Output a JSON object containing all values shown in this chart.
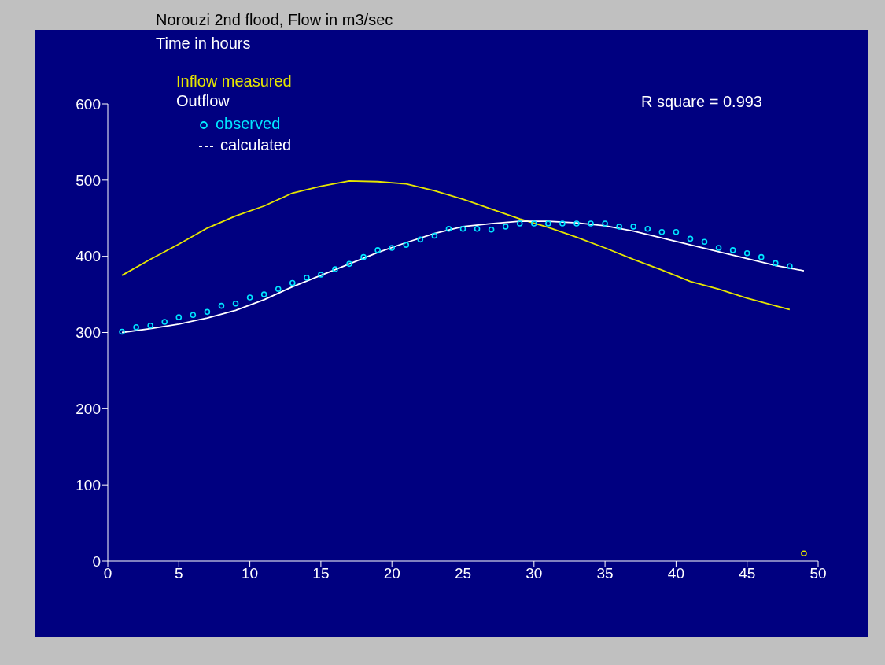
{
  "chart_data": {
    "type": "line",
    "title": "Norouzi 2nd flood, Flow in m3/sec",
    "xlabel": "Time in hours",
    "legend_title": "Outflow",
    "legend": "top left",
    "grid": false,
    "xlim": [
      0,
      50
    ],
    "xticks": [
      0,
      5,
      10,
      15,
      20,
      25,
      30,
      35,
      40,
      45,
      50
    ],
    "ylim": [
      0,
      600
    ],
    "yticks": [
      0,
      100,
      200,
      300,
      400,
      500,
      600
    ],
    "annotations": [
      "R square = 0.993"
    ],
    "series": [
      {
        "name": "Inflow measured",
        "color": "#e6e600",
        "x": [
          1,
          3,
          5,
          7,
          9,
          11,
          13,
          15,
          17,
          19,
          21,
          23,
          25,
          27,
          29,
          31,
          33,
          35,
          37,
          39,
          41,
          43,
          45,
          47,
          48
        ],
        "values": [
          375,
          396,
          416,
          437,
          453,
          466,
          483,
          492,
          499,
          498,
          495,
          486,
          475,
          462,
          449,
          438,
          425,
          411,
          396,
          382,
          367,
          357,
          345,
          335,
          330
        ]
      },
      {
        "name": "observed",
        "type": "scatter",
        "marker": "circle",
        "color": "#00e5ff",
        "x": [
          1,
          2,
          3,
          4,
          5,
          6,
          7,
          8,
          9,
          10,
          11,
          12,
          13,
          14,
          15,
          16,
          17,
          18,
          19,
          20,
          21,
          22,
          23,
          24,
          25,
          26,
          27,
          28,
          29,
          30,
          31,
          32,
          33,
          34,
          35,
          36,
          37,
          38,
          39,
          40,
          41,
          42,
          43,
          44,
          45,
          46,
          47,
          48
        ],
        "values": [
          301,
          307,
          309,
          314,
          320,
          323,
          327,
          335,
          338,
          346,
          350,
          357,
          365,
          372,
          376,
          383,
          390,
          399,
          408,
          411,
          415,
          422,
          427,
          436,
          436,
          436,
          435,
          439,
          443,
          443,
          443,
          443,
          443,
          443,
          443,
          439,
          439,
          436,
          432,
          432,
          423,
          419,
          411,
          408,
          404,
          399,
          391,
          387
        ]
      },
      {
        "name": "calculated",
        "color": "#ffffff",
        "x": [
          1,
          3,
          5,
          7,
          9,
          11,
          13,
          15,
          17,
          19,
          21,
          23,
          25,
          27,
          29,
          31,
          33,
          35,
          37,
          39,
          41,
          43,
          45,
          47,
          49
        ],
        "values": [
          300,
          305,
          311,
          319,
          329,
          343,
          360,
          375,
          390,
          405,
          418,
          430,
          439,
          443,
          446,
          446,
          444,
          440,
          433,
          424,
          415,
          406,
          397,
          388,
          381
        ]
      },
      {
        "type": "scatter",
        "marker": "circle",
        "color": "#e6e600",
        "x": [
          49
        ],
        "values": [
          10
        ]
      }
    ]
  }
}
